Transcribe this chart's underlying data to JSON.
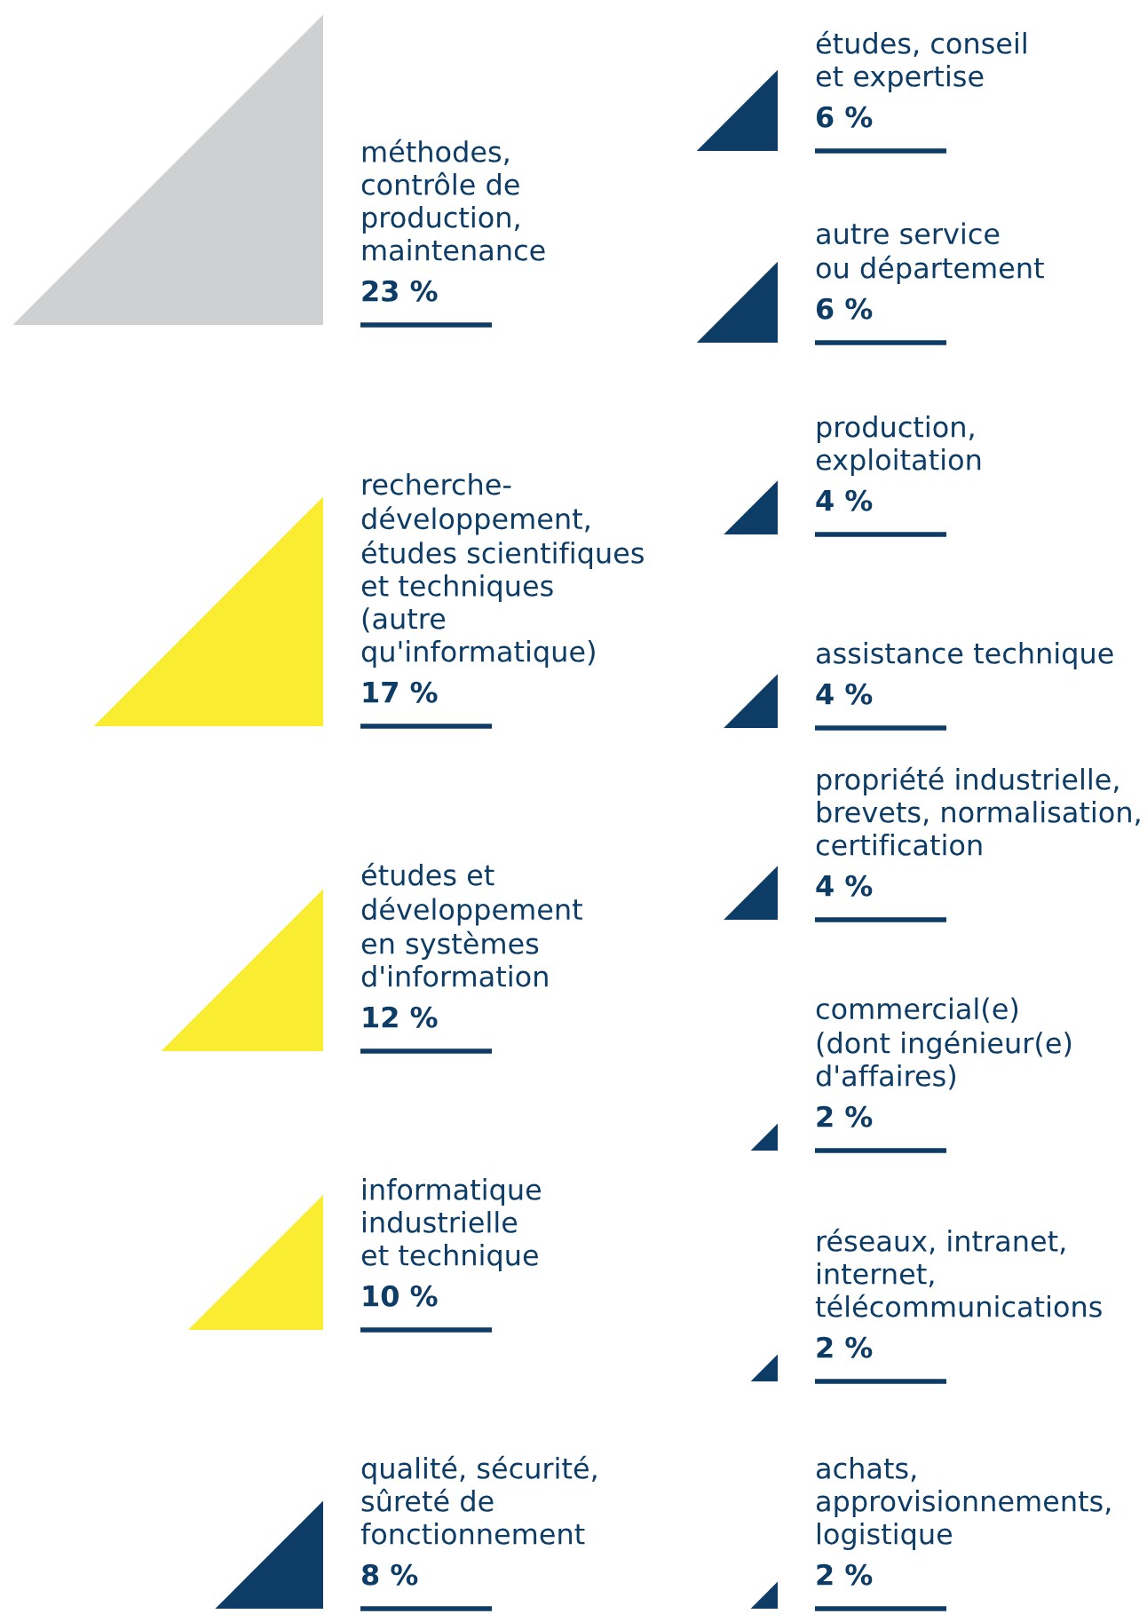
{
  "chart_data": {
    "type": "other",
    "categories": [
      "méthodes,\ncontrôle de\nproduction,\nmaintenance",
      "recherche-\ndéveloppement,\nétudes scientifiques\net techniques\n(autre\nqu'informatique)",
      "études et\ndéveloppement\nen systèmes\nd'information",
      "informatique\nindustrielle\net technique",
      "qualité, sécurité,\nsûreté de\nfonctionnement",
      "études, conseil\net expertise",
      "autre service\nou département",
      "production,\nexploitation",
      "assistance technique",
      "propriété industrielle,\nbrevets, normalisation,\ncertification",
      "commercial(e)\n(dont ingénieur(e)\nd'affaires)",
      "réseaux, intranet,\ninternet,\ntélécommunications",
      "achats,\napprovisionnements,\nlogistique"
    ],
    "values": [
      23,
      17,
      12,
      10,
      8,
      6,
      6,
      4,
      4,
      4,
      2,
      2,
      2
    ],
    "value_labels": [
      "23 %",
      "17 %",
      "12 %",
      "10 %",
      "8 %",
      "6 %",
      "6 %",
      "4 %",
      "4 %",
      "4 %",
      "2 %",
      "2 %",
      "2 %"
    ],
    "colors": [
      "#cfd0d2",
      "#f9ec31",
      "#f9ec31",
      "#f9ec31",
      "#0d3c66",
      "#0d3c66",
      "#0d3c66",
      "#0d3c66",
      "#0d3c66",
      "#0d3c66",
      "#0d3c66",
      "#0d3c66",
      "#0d3c66"
    ]
  }
}
